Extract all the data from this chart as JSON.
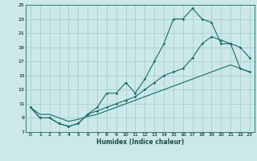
{
  "xlabel": "Humidex (Indice chaleur)",
  "bg_color": "#cce8e8",
  "grid_color": "#aacfcf",
  "line_color": "#1a6b6b",
  "xlim": [
    -0.5,
    23.5
  ],
  "ylim": [
    7,
    25
  ],
  "xticks": [
    0,
    1,
    2,
    3,
    4,
    5,
    6,
    7,
    8,
    9,
    10,
    11,
    12,
    13,
    14,
    15,
    16,
    17,
    18,
    19,
    20,
    21,
    22,
    23
  ],
  "yticks": [
    7,
    9,
    11,
    13,
    15,
    17,
    19,
    21,
    23,
    25
  ],
  "line1_x": [
    0,
    1,
    2,
    3,
    4,
    5,
    6,
    7,
    8,
    9,
    10,
    11,
    12,
    13,
    14,
    15,
    16,
    17,
    18,
    19,
    20,
    21,
    22,
    23
  ],
  "line1_y": [
    10.5,
    9.0,
    9.0,
    8.2,
    7.8,
    8.2,
    9.5,
    10.5,
    12.5,
    12.5,
    14.0,
    12.5,
    14.5,
    17.0,
    19.5,
    23.0,
    23.0,
    24.5,
    23.0,
    22.5,
    19.5,
    19.5,
    19.0,
    17.5
  ],
  "line2_x": [
    0,
    1,
    2,
    3,
    4,
    5,
    6,
    7,
    8,
    9,
    10,
    11,
    12,
    13,
    14,
    15,
    16,
    17,
    18,
    19,
    20,
    21,
    22,
    23
  ],
  "line2_y": [
    10.5,
    9.0,
    9.0,
    8.2,
    7.8,
    8.2,
    9.5,
    10.0,
    10.5,
    11.0,
    11.5,
    12.0,
    13.0,
    14.0,
    15.0,
    15.5,
    16.0,
    17.5,
    19.5,
    20.5,
    20.0,
    19.5,
    16.0,
    15.5
  ],
  "line3_x": [
    0,
    1,
    2,
    3,
    4,
    5,
    6,
    7,
    8,
    9,
    10,
    11,
    12,
    13,
    14,
    15,
    16,
    17,
    18,
    19,
    20,
    21,
    22,
    23
  ],
  "line3_y": [
    10.5,
    9.5,
    9.5,
    9.0,
    8.5,
    8.8,
    9.2,
    9.5,
    10.0,
    10.5,
    11.0,
    11.5,
    12.0,
    12.5,
    13.0,
    13.5,
    14.0,
    14.5,
    15.0,
    15.5,
    16.0,
    16.5,
    16.0,
    15.5
  ]
}
